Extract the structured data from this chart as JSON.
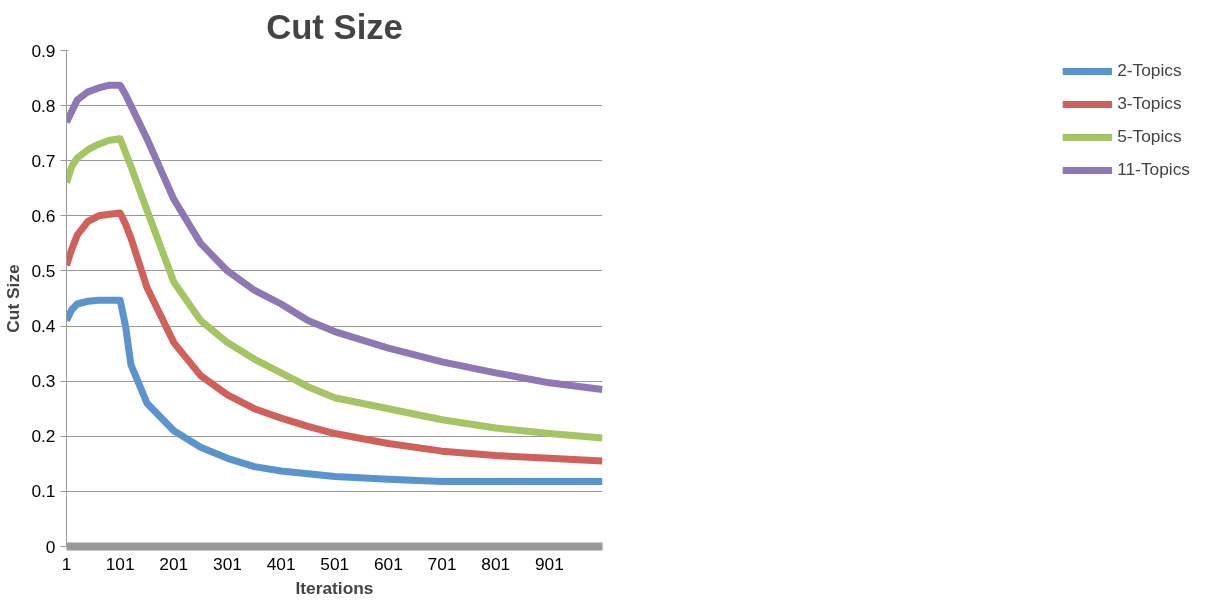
{
  "chart_data": {
    "type": "line",
    "title": "Cut Size",
    "xlabel": "Iterations",
    "ylabel": "Cut Size",
    "x": [
      1,
      11,
      21,
      41,
      61,
      81,
      101,
      111,
      121,
      151,
      201,
      251,
      301,
      351,
      401,
      451,
      501,
      601,
      701,
      801,
      901,
      1000
    ],
    "series": [
      {
        "name": "2-Topics",
        "color": "#5b93cf",
        "values": [
          0.41,
          0.43,
          0.44,
          0.445,
          0.447,
          0.447,
          0.447,
          0.4,
          0.33,
          0.26,
          0.21,
          0.18,
          0.16,
          0.145,
          0.137,
          0.132,
          0.127,
          0.122,
          0.118,
          0.118,
          0.118,
          0.118
        ]
      },
      {
        "name": "3-Topics",
        "color": "#d0605a",
        "values": [
          0.51,
          0.54,
          0.565,
          0.59,
          0.6,
          0.603,
          0.605,
          0.585,
          0.56,
          0.47,
          0.37,
          0.31,
          0.275,
          0.25,
          0.233,
          0.218,
          0.205,
          0.187,
          0.173,
          0.165,
          0.16,
          0.155
        ]
      },
      {
        "name": "5-Topics",
        "color": "#a5c464",
        "values": [
          0.66,
          0.69,
          0.705,
          0.72,
          0.73,
          0.737,
          0.74,
          0.715,
          0.69,
          0.61,
          0.48,
          0.41,
          0.37,
          0.34,
          0.315,
          0.29,
          0.27,
          0.25,
          0.23,
          0.215,
          0.205,
          0.197
        ]
      },
      {
        "name": "11-Topics",
        "color": "#8e78b4",
        "values": [
          0.77,
          0.79,
          0.81,
          0.825,
          0.832,
          0.837,
          0.837,
          0.82,
          0.8,
          0.74,
          0.63,
          0.55,
          0.5,
          0.465,
          0.44,
          0.41,
          0.39,
          0.36,
          0.335,
          0.315,
          0.297,
          0.285
        ]
      }
    ],
    "xlim": [
      1,
      1000
    ],
    "xticks": [
      1,
      101,
      201,
      301,
      401,
      501,
      601,
      701,
      801,
      901
    ],
    "ylim": [
      0,
      0.9
    ],
    "yticks": [
      0,
      0.1,
      0.2,
      0.3,
      0.4,
      0.5,
      0.6,
      0.7,
      0.8,
      0.9
    ],
    "grid": "y",
    "legend": "right",
    "marker": "none",
    "line_style": "solid"
  }
}
